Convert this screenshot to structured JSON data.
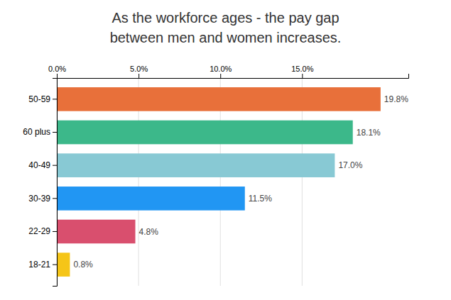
{
  "chart_data": {
    "type": "bar",
    "orientation": "horizontal",
    "title": [
      "As the workforce ages - the pay gap",
      "between men and women increases."
    ],
    "categories": [
      "18-21",
      "22-29",
      "30-39",
      "40-49",
      "60 plus",
      "50-59"
    ],
    "values": [
      0.8,
      4.8,
      11.5,
      17.0,
      18.1,
      19.8
    ],
    "value_labels": [
      "0.8%",
      "4.8%",
      "11.5%",
      "17.0%",
      "18.1%",
      "19.8%"
    ],
    "data_labels": true,
    "colors": [
      "#F5C518",
      "#D94F6E",
      "#2196F3",
      "#88C9D4",
      "#3CB88A",
      "#E8703A"
    ],
    "xlim": [
      0,
      21.5
    ],
    "xticks": [
      {
        "value": 0.0,
        "label": "0.0%"
      },
      {
        "value": 5.0,
        "label": "5.0%"
      },
      {
        "value": 10.0,
        "label": "10.0%"
      },
      {
        "value": 15.0,
        "label": "15.0%"
      }
    ],
    "grid": true
  }
}
